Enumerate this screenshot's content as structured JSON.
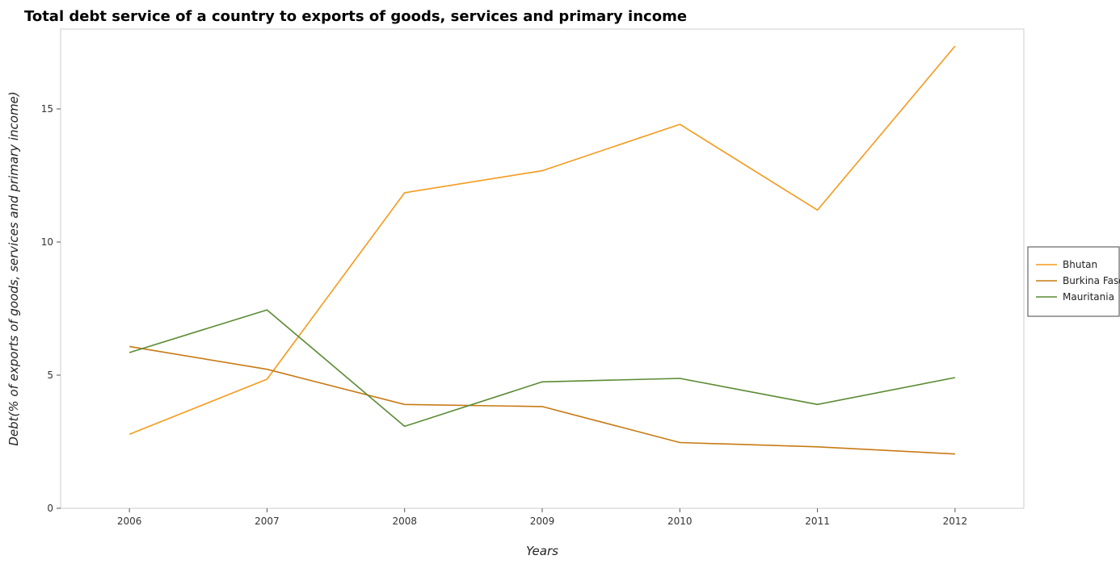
{
  "chart_data": {
    "type": "line",
    "title": "Total debt service of a country to exports of goods, services and primary income",
    "xlabel": "Years",
    "ylabel": "Debt(% of exports of goods, services and primary income)",
    "categories": [
      "2006",
      "2007",
      "2008",
      "2009",
      "2010",
      "2011",
      "2012"
    ],
    "ylim": [
      0,
      18
    ],
    "yticks": [
      0,
      5,
      10,
      15
    ],
    "grid": false,
    "legend_position": "right",
    "series": [
      {
        "name": "Bhutan",
        "color": "#f59a1c",
        "values": [
          2.78,
          4.85,
          11.85,
          12.68,
          14.42,
          11.2,
          17.36
        ]
      },
      {
        "name": "Burkina Faso",
        "color": "#c87a14",
        "values": [
          6.08,
          5.22,
          3.9,
          3.82,
          2.47,
          2.31,
          2.04
        ]
      },
      {
        "name": "Mauritania",
        "color": "#5a8a32",
        "values": [
          5.85,
          7.45,
          3.08,
          4.75,
          4.88,
          3.9,
          4.91
        ]
      }
    ]
  }
}
